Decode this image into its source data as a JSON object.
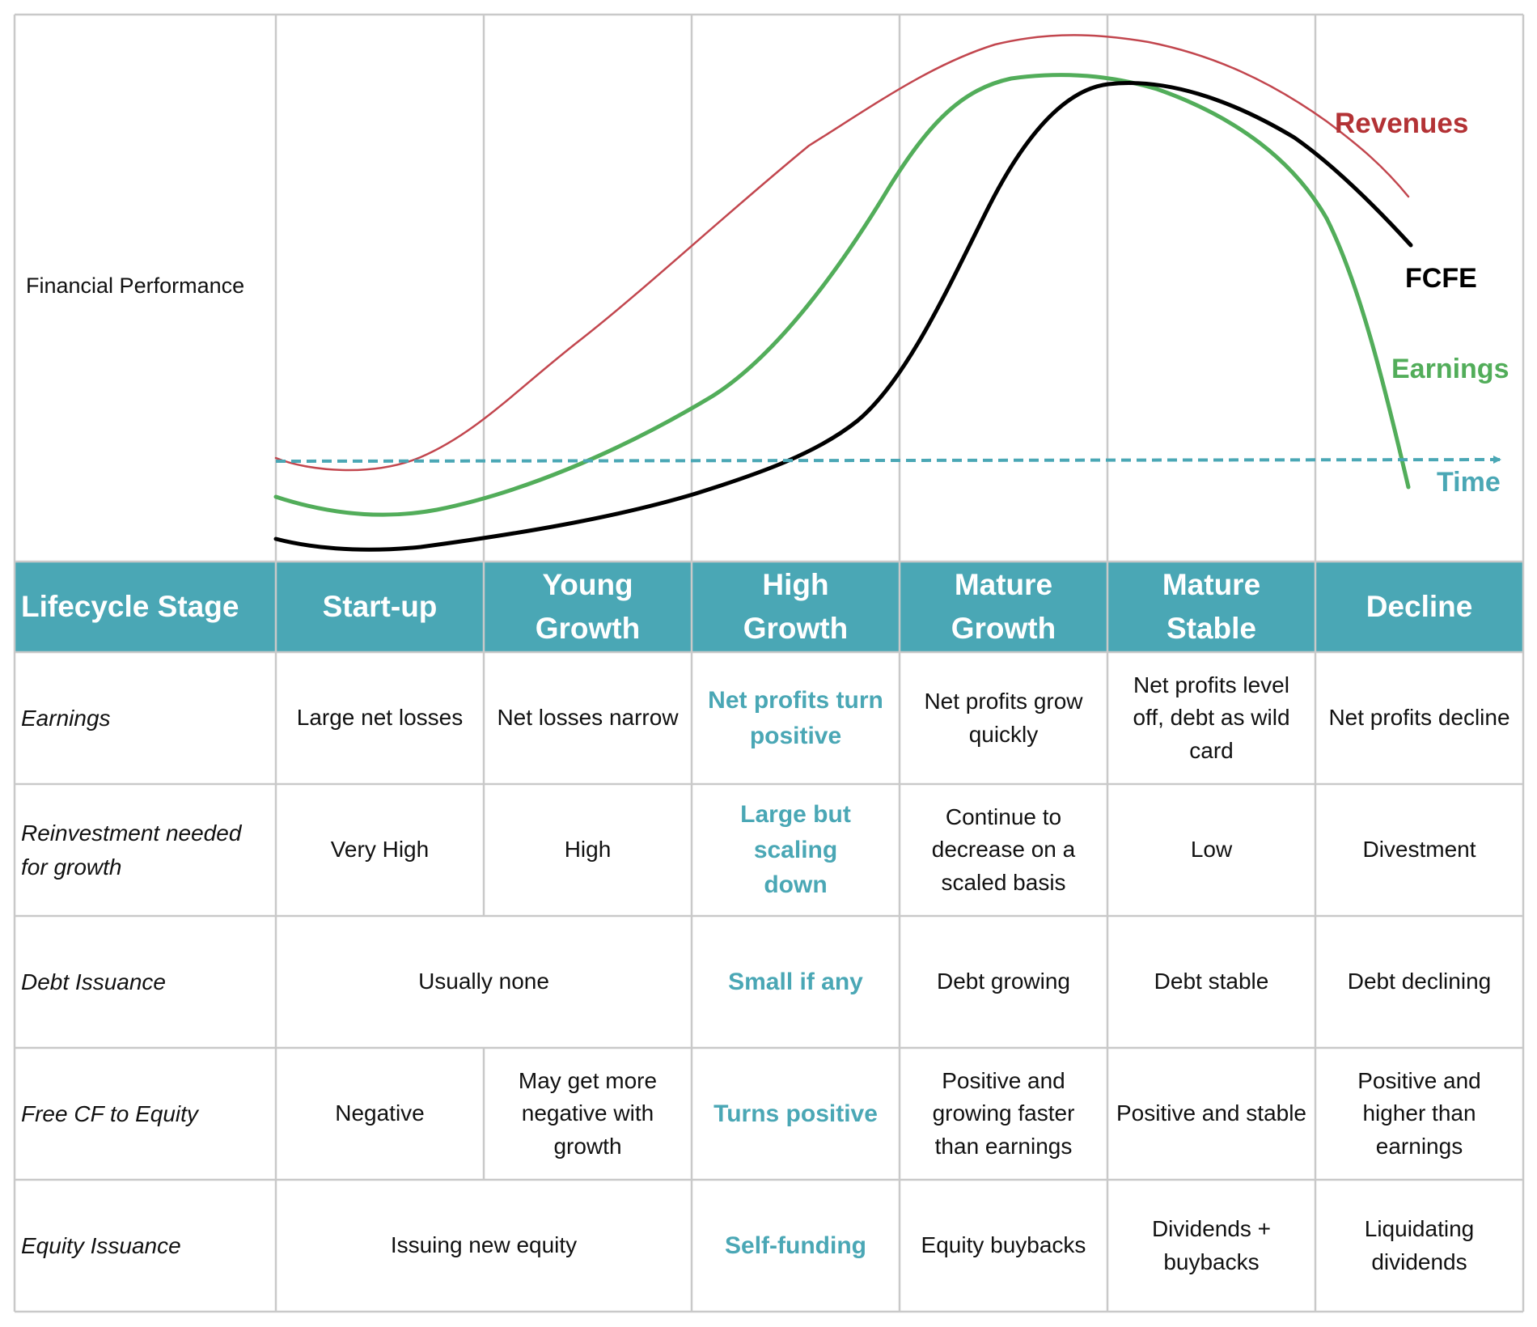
{
  "chart_label": "Financial Performance",
  "series": [
    {
      "name": "Revenues",
      "color": "#b33235"
    },
    {
      "name": "FCFE",
      "color": "#000000"
    },
    {
      "name": "Earnings",
      "color": "#52ad5a"
    }
  ],
  "axis": {
    "name": "Time",
    "color": "#4aa7b5"
  },
  "colors": {
    "header_bg": "#4aa7b5",
    "accent_text": "#4aa7b5",
    "grid": "#c9c9c9"
  },
  "table": {
    "header_label": "Lifecycle Stage",
    "stages": [
      "Start-up",
      "Young\nGrowth",
      "High\nGrowth",
      "Mature\nGrowth",
      "Mature\nStable",
      "Decline"
    ],
    "highlight_stage": "High\nGrowth",
    "rows": [
      {
        "label": "Earnings",
        "cells": [
          "Large net losses",
          "Net losses narrow",
          "Net profits turn\npositive",
          "Net profits grow\nquickly",
          "Net profits level\noff, debt as wild\ncard",
          "Net profits decline"
        ]
      },
      {
        "label": "Reinvestment needed\nfor growth",
        "cells": [
          "Very High",
          "High",
          "Large but scaling\ndown",
          "Continue to\ndecrease on a\nscaled basis",
          "Low",
          "Divestment"
        ]
      },
      {
        "label": "Debt Issuance",
        "merged": "Usually none",
        "cells": [
          "Small if any",
          "Debt growing",
          "Debt stable",
          "Debt declining"
        ]
      },
      {
        "label": "Free CF to Equity",
        "cells": [
          "Negative",
          "May get more\nnegative with\ngrowth",
          "Turns positive",
          "Positive and\ngrowing faster\nthan earnings",
          "Positive and stable",
          "Positive and\nhigher than\nearnings"
        ]
      },
      {
        "label": "Equity Issuance",
        "merged": "Issuing new equity",
        "cells": [
          "Self-funding",
          "Equity buybacks",
          "Dividends +\nbuybacks",
          "Liquidating\ndividends"
        ]
      }
    ]
  }
}
